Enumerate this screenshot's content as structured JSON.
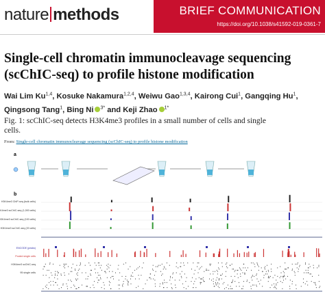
{
  "header": {
    "journal_left": "nature",
    "journal_right": "methods",
    "article_type": "BRIEF COMMUNICATION",
    "doi": "https://doi.org/10.1038/s41592-019-0361-7"
  },
  "title": "Single-cell chromatin immunocleavage sequencing (scChIC-seq) to profile histone modification",
  "authors": [
    {
      "name": "Wai Lim Ku",
      "affil": "1,4",
      "sep": ","
    },
    {
      "name": "Kosuke Nakamura",
      "affil": "1,2,4",
      "sep": ","
    },
    {
      "name": "Weiwu Gao",
      "affil": "1,3,4",
      "sep": ","
    },
    {
      "name": "Kairong Cui",
      "affil": "1",
      "sep": ","
    },
    {
      "name": "Gangqing Hu",
      "affil": "1",
      "sep": ","
    },
    {
      "name": "Qingsong Tang",
      "affil": "1",
      "sep": ","
    },
    {
      "name": "Bing Ni",
      "affil": "3*",
      "sep": "and"
    },
    {
      "name": "Keji Zhao",
      "affil": "1*"
    }
  ],
  "figure": {
    "caption": "Fig. 1: scChIC-seq detects H3K4me3 profiles in a small number of cells and single cells.",
    "from_label": "From:",
    "from_link": "Single-cell chromatin immunocleavage sequencing (scChIC-seq) to profile histone modification",
    "panel_a": "a",
    "panel_b": "b",
    "tracks_a": [
      "H3K4me3 ChIP-seq (bulk cells)",
      "H3K4me3 scChIC-seq (1,000 cells)",
      "H3K4me3 scChIC-seq (100 cells)",
      "H3K4me3 scChIC-seq (20 cells)"
    ],
    "tracks_b": [
      "ENCODE (peaks)",
      "Pooled single cells",
      "H3K4me3 scChIC-seq",
      "95 single cells"
    ]
  }
}
